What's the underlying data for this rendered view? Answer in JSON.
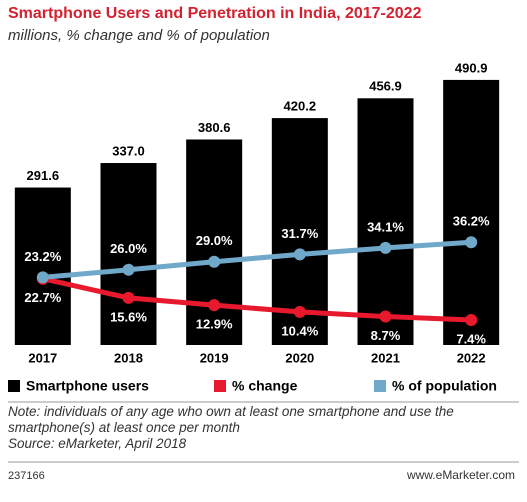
{
  "chart_data": {
    "type": "bar",
    "title": "Smartphone Users and Penetration in India, 2017-2022",
    "subtitle": "millions, % change and % of population",
    "categories": [
      "2017",
      "2018",
      "2019",
      "2020",
      "2021",
      "2022"
    ],
    "series": [
      {
        "name": "Smartphone users",
        "type": "bar",
        "color": "#000000",
        "values": [
          291.6,
          337.0,
          380.6,
          420.2,
          456.9,
          490.9
        ],
        "value_labels": [
          "291.6",
          "337.0",
          "380.6",
          "420.2",
          "456.9",
          "490.9"
        ]
      },
      {
        "name": "% change",
        "type": "line",
        "color": "#e8192c",
        "values": [
          22.7,
          15.6,
          12.9,
          10.4,
          8.7,
          7.4
        ],
        "value_labels": [
          "22.7%",
          "15.6%",
          "12.9%",
          "10.4%",
          "8.7%",
          "7.4%"
        ]
      },
      {
        "name": "% of population",
        "type": "line",
        "color": "#6fa8c9",
        "values": [
          23.2,
          26.0,
          29.0,
          31.7,
          34.1,
          36.2
        ],
        "value_labels": [
          "23.2%",
          "26.0%",
          "29.0%",
          "31.7%",
          "34.1%",
          "36.2%"
        ]
      }
    ],
    "note": "Note: individuals of any age who own at least one smartphone and use the smartphone(s) at least once per month",
    "source": "Source: eMarketer, April 2018",
    "chart_id": "237166",
    "website": "www.eMarketer.com"
  }
}
